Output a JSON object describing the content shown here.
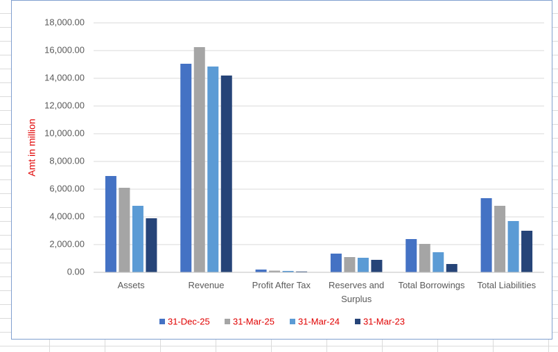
{
  "chart_data": {
    "type": "bar",
    "y_axis_label": "Amt in million",
    "categories": [
      "Assets",
      "Revenue",
      "Profit After Tax",
      "Reserves and Surplus",
      "Total Borrowings",
      "Total Liabilities"
    ],
    "series": [
      {
        "name": "31-Dec-25",
        "color": "#4472c4",
        "values": [
          6950,
          15050,
          200,
          1350,
          2400,
          5350
        ]
      },
      {
        "name": "31-Mar-25",
        "color": "#a5a5a5",
        "values": [
          6100,
          16250,
          120,
          1100,
          2050,
          4800
        ]
      },
      {
        "name": "31-Mar-24",
        "color": "#5b9bd5",
        "values": [
          4800,
          14850,
          100,
          1050,
          1450,
          3700
        ]
      },
      {
        "name": "31-Mar-23",
        "color": "#264478",
        "values": [
          3900,
          14200,
          60,
          900,
          600,
          3000
        ]
      }
    ],
    "ylim": [
      0,
      18000
    ],
    "yticks": [
      {
        "value": 0,
        "label": "0.00"
      },
      {
        "value": 2000,
        "label": "2,000.00"
      },
      {
        "value": 4000,
        "label": "4,000.00"
      },
      {
        "value": 6000,
        "label": "6,000.00"
      },
      {
        "value": 8000,
        "label": "8,000.00"
      },
      {
        "value": 10000,
        "label": "10,000.00"
      },
      {
        "value": 12000,
        "label": "12,000.00"
      },
      {
        "value": 14000,
        "label": "14,000.00"
      },
      {
        "value": 16000,
        "label": "16,000.00"
      },
      {
        "value": 18000,
        "label": "18,000.00"
      }
    ],
    "grid": true,
    "legend_position": "bottom"
  }
}
